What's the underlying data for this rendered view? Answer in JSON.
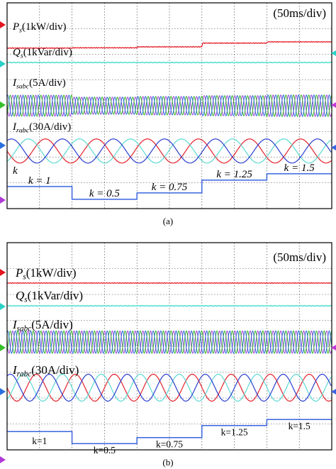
{
  "colors": {
    "ps": "#e4202a",
    "qs": "#57e0d4",
    "phase_a": "#a04ad8",
    "phase_b": "#39b72a",
    "phase_c": "#2f6bd8",
    "ir_a": "#e4202a",
    "ir_b": "#5ad9d2",
    "ir_c": "#2a3fd0",
    "k": "#3a64e0",
    "marker_red": "#e3161f",
    "marker_cyan": "#2bd1c7",
    "marker_green": "#35c02a",
    "marker_blue": "#2a6ee0",
    "marker_magenta": "#b03ad8"
  },
  "chart_data": [
    {
      "type": "line",
      "panel": "(a)",
      "timebase": "(50ms/div)",
      "channels": {
        "ps": {
          "sym": "P",
          "sub": "s",
          "unit": "(1kW/div)"
        },
        "qs": {
          "sym": "Q",
          "sub": "s",
          "unit": "(1kVar/div)"
        },
        "is": {
          "sym": "I",
          "sub": "sabc",
          "unit": "(5A/div)"
        },
        "ir": {
          "sym": "I",
          "sub": "rabc",
          "unit": "(30A/div)"
        },
        "k": {
          "sym": "k",
          "sub": "",
          "unit": ""
        }
      },
      "k_steps": [
        {
          "label": "k = 1",
          "value": 1.0
        },
        {
          "label": "k = 0.5",
          "value": 0.5
        },
        {
          "label": "k = 0.75",
          "value": 0.75
        },
        {
          "label": "k = 1.25",
          "value": 1.25
        },
        {
          "label": "k = 1.5",
          "value": 1.5
        }
      ],
      "ps_steps": [
        0.0,
        0.02,
        0.08,
        0.32,
        0.4
      ],
      "is_amplitude": [
        1.0,
        0.82,
        0.88,
        0.96,
        1.02
      ]
    },
    {
      "type": "line",
      "panel": "(b)",
      "timebase": "(50ms/div)",
      "channels": {
        "ps": {
          "sym": "P",
          "sub": "s",
          "unit": "(1kW/div)"
        },
        "qs": {
          "sym": "Q",
          "sub": "s",
          "unit": "(1kVar/div)"
        },
        "is": {
          "sym": "I",
          "sub": "sabc",
          "unit": "(5A/div)"
        },
        "ir": {
          "sym": "I",
          "sub": "rabc",
          "unit": "(30A/div)"
        },
        "k": {
          "sym": "",
          "sub": "",
          "unit": ""
        }
      },
      "k_steps": [
        {
          "label": "k=1",
          "value": 1.0
        },
        {
          "label": "k=0.5",
          "value": 0.5
        },
        {
          "label": "k=0.75",
          "value": 0.75
        },
        {
          "label": "k=1.25",
          "value": 1.25
        },
        {
          "label": "k=1.5",
          "value": 1.5
        }
      ],
      "ps_steps": [
        0.0,
        0.0,
        0.0,
        0.0,
        0.0
      ],
      "is_amplitude": [
        1.0,
        1.0,
        1.0,
        1.0,
        1.0
      ]
    }
  ]
}
